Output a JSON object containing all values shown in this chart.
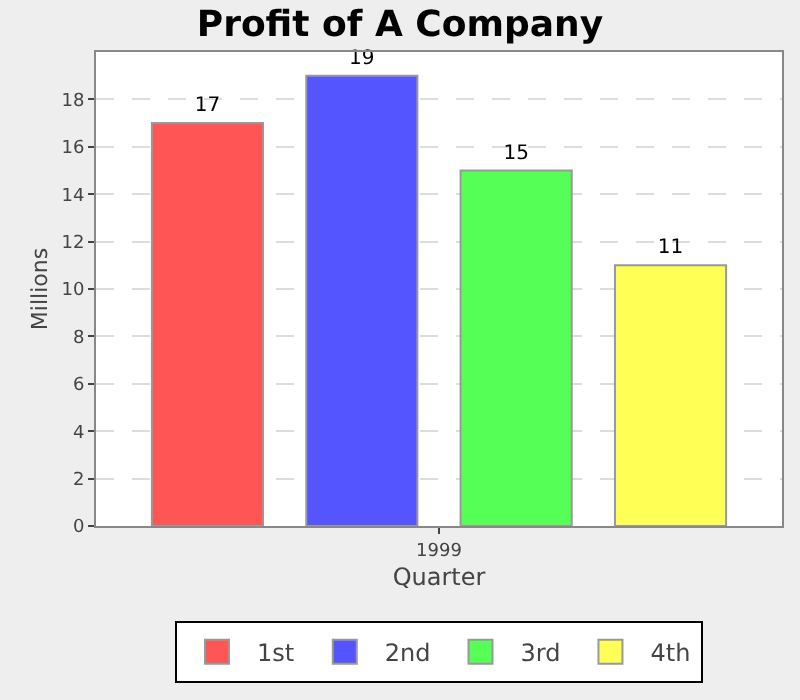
{
  "chart_data": {
    "type": "bar",
    "title": "Profit of A Company",
    "xlabel": "Quarter",
    "ylabel": "Millions",
    "categories": [
      "1999"
    ],
    "series": [
      {
        "name": "1st",
        "color": "#ff5555",
        "values": [
          17
        ]
      },
      {
        "name": "2nd",
        "color": "#5555ff",
        "values": [
          19
        ]
      },
      {
        "name": "3rd",
        "color": "#55ff55",
        "values": [
          15
        ]
      },
      {
        "name": "4th",
        "color": "#ffff55",
        "values": [
          11
        ]
      }
    ],
    "ylim": [
      0,
      20
    ],
    "yticks": [
      0,
      2,
      4,
      6,
      8,
      10,
      12,
      14,
      16,
      18
    ],
    "grid": "y",
    "legend": "bottom",
    "data_labels": true
  }
}
